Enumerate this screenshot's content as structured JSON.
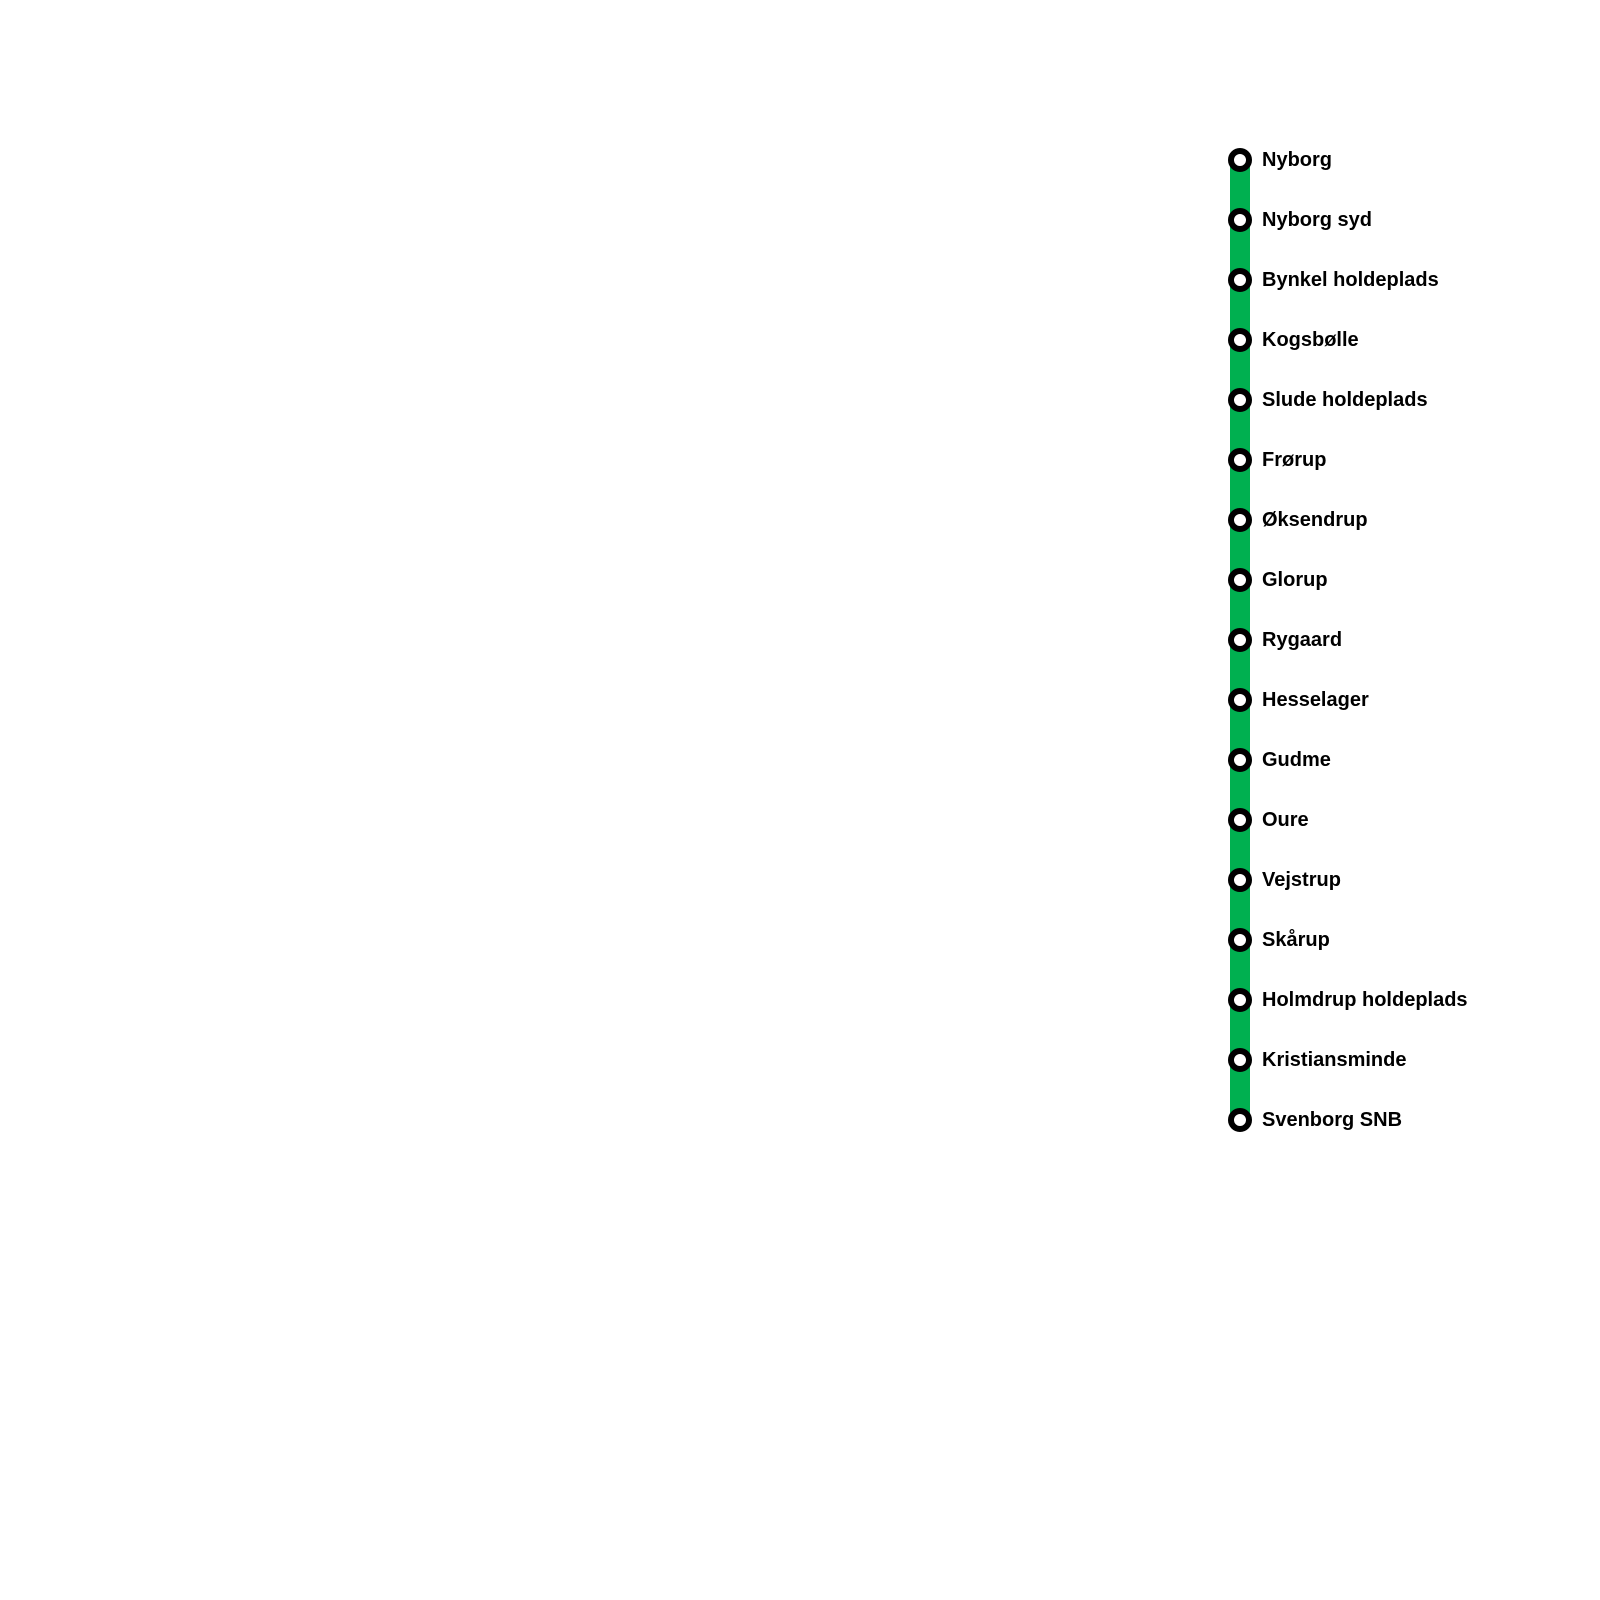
{
  "line": {
    "color": "#00b050",
    "stations": [
      "Nyborg",
      "Nyborg syd",
      "Bynkel holdeplads",
      "Kogsbølle",
      "Slude holdeplads",
      "Frørup",
      "Øksendrup",
      "Glorup",
      "Rygaard",
      "Hesselager",
      "Gudme",
      "Oure",
      "Vejstrup",
      "Skårup",
      "Holmdrup holdeplads",
      "Kristiansminde",
      "Svenborg SNB"
    ]
  }
}
